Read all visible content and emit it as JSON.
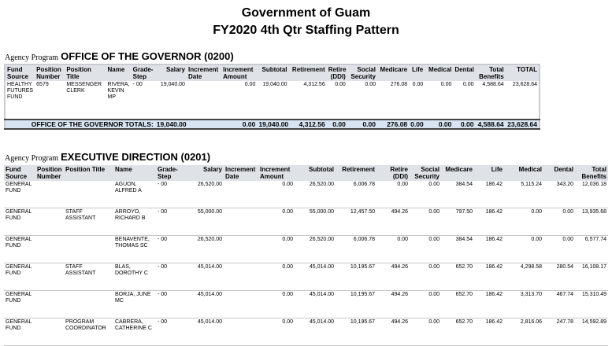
{
  "header": {
    "line1": "Government of Guam",
    "line2": "FY2020 4th Qtr Staffing Pattern"
  },
  "agency_label": "Agency Program",
  "columns_t1": [
    "Fund Source",
    "Position Number",
    "Position Title",
    "Name",
    "Grade-Step",
    "Salary",
    "Increment Date",
    "Increment Amount",
    "Subtotal",
    "Retirement",
    "Retire (DDI)",
    "Social Security",
    "Medicare",
    "Life",
    "Medical",
    "Dental",
    "Total Benefits",
    "TOTAL"
  ],
  "columns_t2": [
    "Fund Source",
    "Position Number",
    "Position Title",
    "Name",
    "Grade-Step",
    "Salary",
    "Increment Date",
    "Increment Amount",
    "Subtotal",
    "Retirement",
    "Retire (DDI)",
    "Social Security",
    "Medicare",
    "Life",
    "Medical",
    "Dental",
    "Total Benefits"
  ],
  "section1": {
    "title": "OFFICE OF THE GOVERNOR (0200)",
    "rows": [
      {
        "fund": "HEALTHY FUTURES FUND",
        "posnum": "6579",
        "title": "MESSENGER CLERK",
        "name": "RIVERA, KEVIN MP",
        "grade": "- 00",
        "salary": "19,040.00",
        "incdate": "",
        "incamt": "0.00",
        "subtotal": "19,040.00",
        "retirement": "4,312.56",
        "ddi": "0.00",
        "ss": "0.00",
        "medicare": "276.08",
        "life": "0.00",
        "medical": "0.00",
        "dental": "0.00",
        "benefits": "4,588.64",
        "total": "23,628.64"
      }
    ],
    "totals": {
      "label": "OFFICE OF THE GOVERNOR TOTALS:",
      "salary": "19,040.00",
      "incamt": "0.00",
      "subtotal": "19,040.00",
      "retirement": "4,312.56",
      "ddi": "0.00",
      "ss": "0.00",
      "medicare": "276.08",
      "life": "0.00",
      "medical": "0.00",
      "dental": "0.00",
      "benefits": "4,588.64",
      "total": "23,628.64"
    }
  },
  "section2": {
    "title": "EXECUTIVE DIRECTION (0201)",
    "rows": [
      {
        "fund": "GENERAL FUND",
        "posnum": "",
        "title": "",
        "name": "AGUON, ALFRED A",
        "grade": "- 00",
        "salary": "26,520.00",
        "incdate": "",
        "incamt": "0.00",
        "subtotal": "26,520.00",
        "retirement": "6,006.78",
        "ddi": "0.00",
        "ss": "0.00",
        "medicare": "384.54",
        "life": "186.42",
        "medical": "5,115.24",
        "dental": "343.20",
        "benefits": "12,036.18"
      },
      {
        "fund": "GENERAL FUND",
        "posnum": "",
        "title": "STAFF ASSISTANT",
        "name": "ARROYO, RICHARD B",
        "grade": "- 00",
        "salary": "55,000.00",
        "incdate": "",
        "incamt": "0.00",
        "subtotal": "55,000.00",
        "retirement": "12,457.50",
        "ddi": "494.26",
        "ss": "0.00",
        "medicare": "797.50",
        "life": "186.42",
        "medical": "0.00",
        "dental": "0.00",
        "benefits": "13,935.68"
      },
      {
        "fund": "GENERAL FUND",
        "posnum": "",
        "title": "",
        "name": "BENAVENTE, THOMAS SC",
        "grade": "- 00",
        "salary": "26,520.00",
        "incdate": "",
        "incamt": "0.00",
        "subtotal": "26,520.00",
        "retirement": "6,006.78",
        "ddi": "0.00",
        "ss": "0.00",
        "medicare": "384.54",
        "life": "186.42",
        "medical": "0.00",
        "dental": "0.00",
        "benefits": "6,577.74"
      },
      {
        "fund": "GENERAL FUND",
        "posnum": "",
        "title": "STAFF ASSISTANT",
        "name": "BLAS, DOROTHY C",
        "grade": "- 00",
        "salary": "45,014.00",
        "incdate": "",
        "incamt": "0.00",
        "subtotal": "45,014.00",
        "retirement": "10,195.67",
        "ddi": "494.26",
        "ss": "0.00",
        "medicare": "652.70",
        "life": "186.42",
        "medical": "4,298.58",
        "dental": "280.54",
        "benefits": "16,108.17"
      },
      {
        "fund": "GENERAL FUND",
        "posnum": "",
        "title": "",
        "name": "BORJA, JUNE MC",
        "grade": "- 00",
        "salary": "45,014.00",
        "incdate": "",
        "incamt": "0.00",
        "subtotal": "45,014.00",
        "retirement": "10,195.67",
        "ddi": "494.26",
        "ss": "0.00",
        "medicare": "652.70",
        "life": "186.42",
        "medical": "3,313.70",
        "dental": "467.74",
        "benefits": "15,310.49"
      },
      {
        "fund": "GENERAL FUND",
        "posnum": "",
        "title": "PROGRAM COORDINATOR",
        "name": "CABRERA, CATHERINE C",
        "grade": "- 00",
        "salary": "45,014.00",
        "incdate": "",
        "incamt": "0.00",
        "subtotal": "45,014.00",
        "retirement": "10,195.67",
        "ddi": "494.26",
        "ss": "0.00",
        "medicare": "652.70",
        "life": "186.42",
        "medical": "2,816.06",
        "dental": "247.78",
        "benefits": "14,592.89"
      }
    ]
  }
}
